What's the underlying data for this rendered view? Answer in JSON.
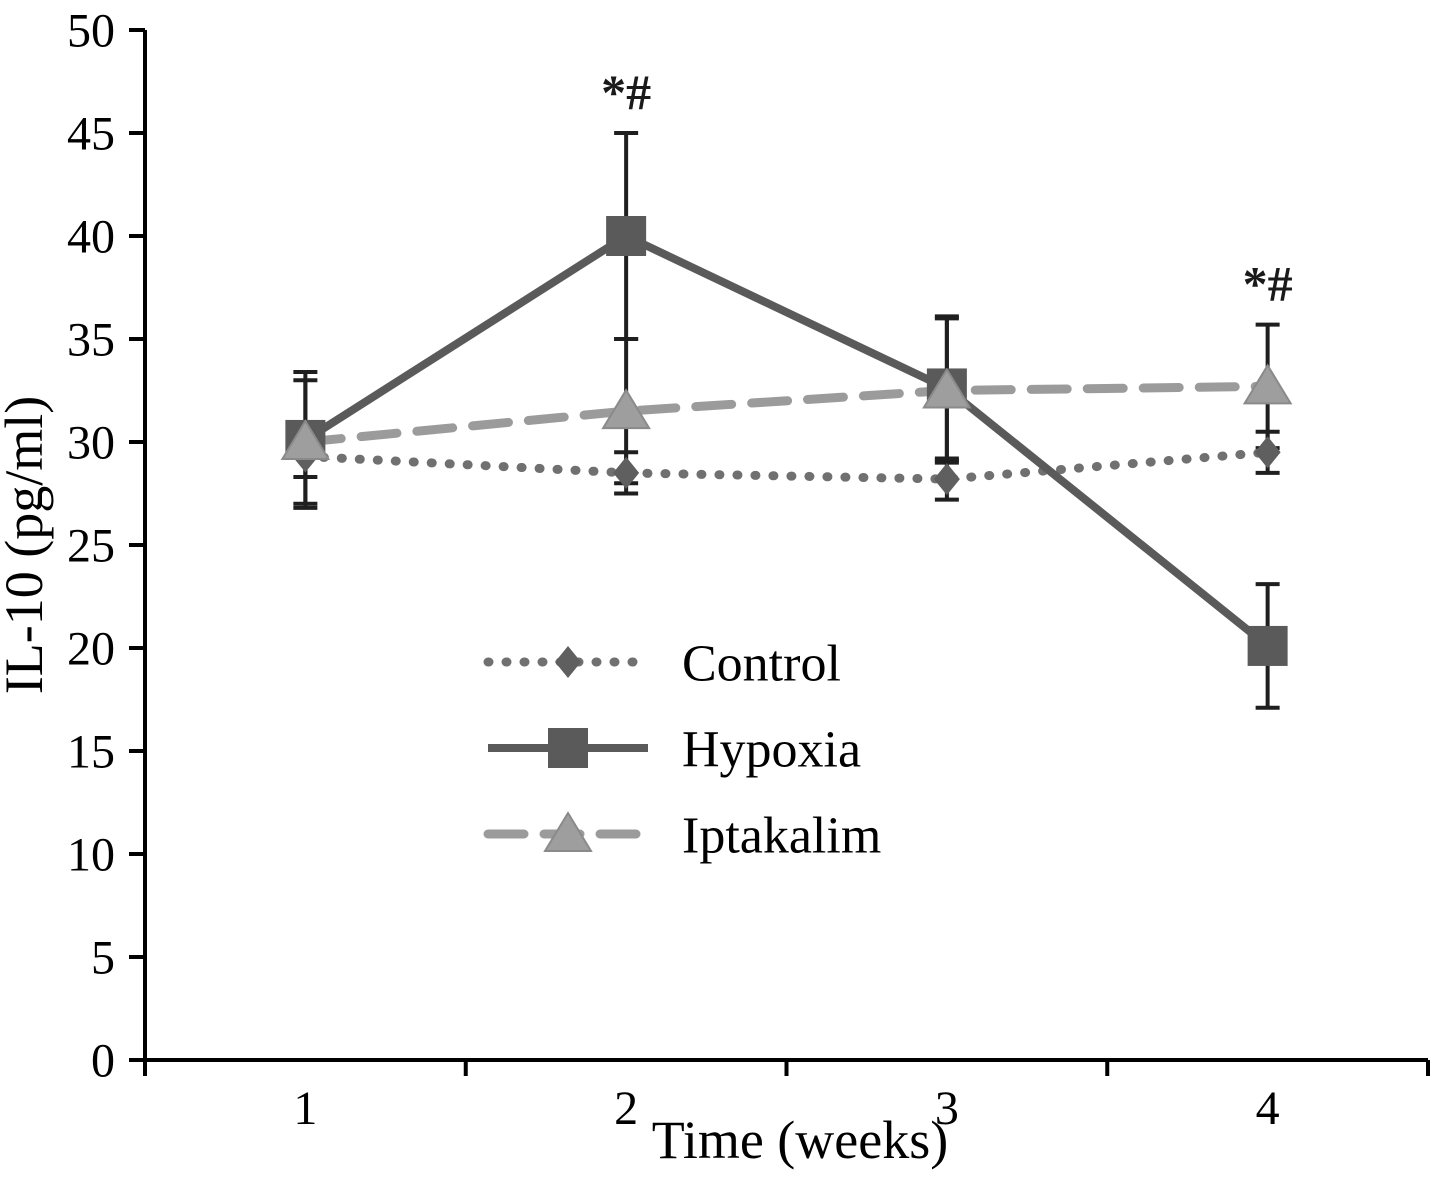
{
  "figure": {
    "background": "#ffffff"
  },
  "chart_data": {
    "type": "line",
    "x": [
      "1",
      "2",
      "3",
      "4"
    ],
    "xlabel": "Time (weeks)",
    "ylabel": "IL-10 (pg/ml)",
    "ylim": [
      0,
      50
    ],
    "ytick_step": 5,
    "grid": false,
    "legend_position": "inside-center-left",
    "axis_color": "#000000",
    "error_bar_color": "#1f1f1f",
    "series": [
      {
        "name": "Control",
        "marker": "diamond",
        "line_style": "dotted",
        "color": "#707070",
        "marker_color": "#5f5f5f",
        "values": [
          29.3,
          28.5,
          28.2,
          29.5
        ],
        "errors": [
          1.0,
          1.0,
          1.0,
          1.0
        ]
      },
      {
        "name": "Hypoxia",
        "marker": "square",
        "line_style": "solid",
        "color": "#5a5a5a",
        "marker_color": "#5a5a5a",
        "values": [
          30.1,
          40.0,
          32.6,
          20.1
        ],
        "errors": [
          3.3,
          5.0,
          3.5,
          3.0
        ]
      },
      {
        "name": "Iptakalim",
        "marker": "triangle",
        "line_style": "dashed",
        "color": "#9b9b9b",
        "marker_color": "#9e9e9e",
        "values": [
          30.0,
          31.5,
          32.5,
          32.7
        ],
        "errors": [
          3.0,
          3.5,
          3.5,
          3.0
        ]
      }
    ],
    "annotations": [
      {
        "text": "*#",
        "series": "Hypoxia",
        "x_index": 1
      },
      {
        "text": "*#",
        "series": "Iptakalim",
        "x_index": 3
      }
    ]
  }
}
